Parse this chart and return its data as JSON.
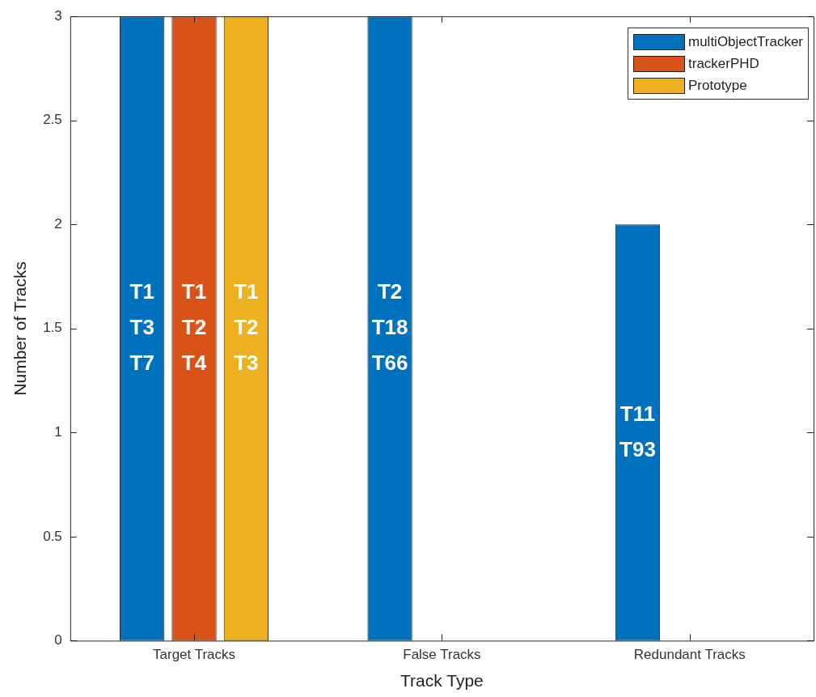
{
  "chart_data": {
    "type": "bar",
    "xlabel": "Track Type",
    "ylabel": "Number of Tracks",
    "categories": [
      "Target Tracks",
      "False Tracks",
      "Redundant Tracks"
    ],
    "series": [
      {
        "name": "multiObjectTracker",
        "color": "#0072bd",
        "values": [
          3,
          3,
          2
        ],
        "value_labels": [
          "T1\nT3\nT7",
          "T2\nT18\nT66",
          "T11\nT93"
        ]
      },
      {
        "name": "trackerPHD",
        "color": "#d95319",
        "values": [
          3,
          0,
          0
        ],
        "value_labels": [
          "T1\nT2\nT4",
          null,
          null
        ]
      },
      {
        "name": "Prototype",
        "color": "#edb120",
        "values": [
          3,
          0,
          0
        ],
        "value_labels": [
          "T1\nT2\nT3",
          null,
          null
        ]
      }
    ],
    "ylim": [
      0,
      3
    ],
    "yticks": [
      0,
      0.5,
      1,
      1.5,
      2,
      2.5,
      3
    ],
    "grid": false,
    "legend": "top right"
  }
}
